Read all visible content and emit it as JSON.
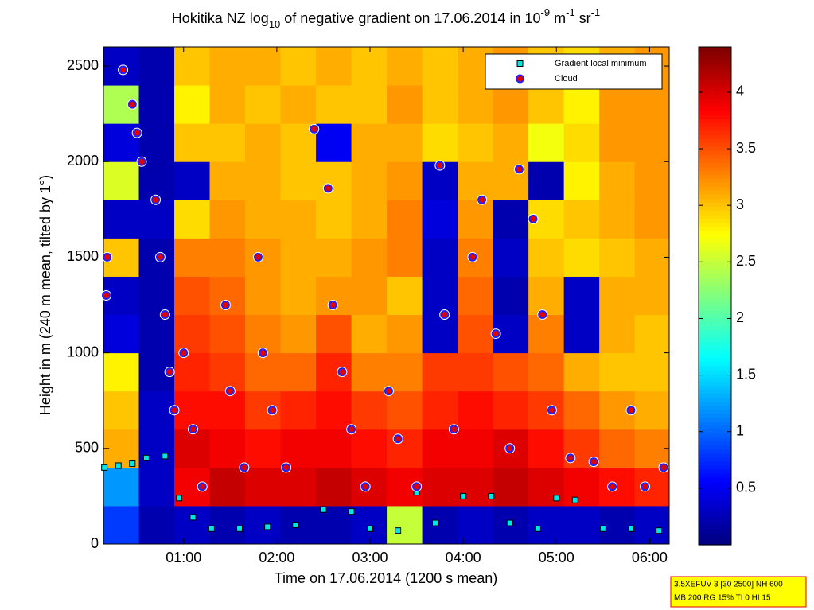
{
  "chart_data": {
    "type": "heatmap",
    "title_parts": [
      {
        "text": "Hokitika NZ log"
      },
      {
        "text": "10",
        "style": "sub"
      },
      {
        "text": " of negative gradient on 17.06.2014 in 10"
      },
      {
        "text": "-9",
        "style": "super"
      },
      {
        "text": " m"
      },
      {
        "text": "-1",
        "style": "super"
      },
      {
        "text": " sr"
      },
      {
        "text": "-1",
        "style": "super"
      }
    ],
    "x_label": "Time on 17.06.2014 (1200 s mean)",
    "y_label": "Height in m (240 m mean, tilted by 1°)",
    "xlim": [
      0.14,
      6.21
    ],
    "xticks": [
      {
        "value": 1,
        "label": "01:00"
      },
      {
        "value": 2,
        "label": "02:00"
      },
      {
        "value": 3,
        "label": "03:00"
      },
      {
        "value": 4,
        "label": "04:00"
      },
      {
        "value": 5,
        "label": "05:00"
      },
      {
        "value": 6,
        "label": "06:00"
      }
    ],
    "ylim": [
      0,
      2600
    ],
    "yticks": [
      0,
      500,
      1000,
      1500,
      2000,
      2500
    ],
    "clim": [
      0,
      4.4
    ],
    "cticks": [
      0.5,
      1,
      1.5,
      2,
      2.5,
      3,
      3.5,
      4
    ],
    "colormap": "jet",
    "xbins": [
      0.14,
      0.52,
      0.9,
      1.28,
      1.66,
      2.04,
      2.42,
      2.8,
      3.18,
      3.56,
      3.94,
      4.32,
      4.7,
      5.08,
      5.46,
      5.84,
      6.21
    ],
    "ybins": [
      0,
      200,
      400,
      600,
      800,
      1000,
      1200,
      1400,
      1600,
      1800,
      2000,
      2200,
      2400,
      2600
    ],
    "z": [
      [
        0.8,
        0.2,
        0.3,
        0.2,
        0.3,
        0.2,
        0.2,
        0.3,
        2.5,
        0.2,
        0.3,
        0.2,
        0.3,
        0.3,
        0.2,
        0.3
      ],
      [
        1.2,
        0.3,
        3.9,
        4.1,
        4.0,
        4.0,
        4.1,
        4.0,
        3.9,
        4.0,
        4.0,
        4.1,
        4.0,
        3.9,
        3.8,
        3.7
      ],
      [
        3.1,
        0.3,
        4.0,
        3.9,
        3.8,
        3.9,
        3.9,
        3.8,
        3.7,
        3.9,
        3.9,
        4.0,
        3.8,
        3.6,
        3.4,
        3.3
      ],
      [
        3.0,
        0.3,
        3.8,
        3.8,
        3.6,
        3.7,
        3.8,
        3.6,
        3.5,
        3.7,
        3.8,
        3.7,
        3.6,
        3.4,
        3.2,
        3.1
      ],
      [
        2.8,
        0.2,
        3.7,
        3.6,
        3.4,
        3.4,
        3.7,
        3.3,
        3.3,
        3.6,
        3.6,
        3.5,
        3.4,
        3.1,
        3.0,
        3.0
      ],
      [
        0.4,
        0.2,
        3.6,
        3.5,
        3.3,
        3.2,
        3.5,
        3.1,
        3.2,
        0.3,
        3.5,
        0.3,
        3.3,
        0.3,
        3.1,
        3.0
      ],
      [
        0.3,
        0.2,
        3.5,
        3.4,
        3.2,
        3.1,
        3.2,
        3.2,
        3.0,
        0.3,
        3.4,
        0.2,
        3.1,
        0.3,
        3.1,
        3.1
      ],
      [
        3.0,
        0.2,
        3.3,
        3.3,
        3.2,
        3.1,
        3.1,
        3.2,
        3.3,
        0.3,
        3.3,
        0.3,
        3.0,
        2.9,
        3.0,
        3.1
      ],
      [
        0.3,
        0.3,
        2.9,
        3.2,
        3.1,
        3.1,
        3.0,
        3.1,
        3.3,
        0.4,
        3.2,
        0.2,
        2.9,
        3.0,
        3.1,
        3.2
      ],
      [
        2.6,
        0.2,
        0.3,
        3.1,
        3.1,
        3.0,
        3.0,
        3.1,
        3.2,
        0.3,
        3.1,
        3.1,
        0.2,
        2.8,
        3.1,
        3.2
      ],
      [
        0.4,
        0.2,
        3.0,
        3.0,
        3.1,
        3.0,
        0.5,
        3.1,
        3.1,
        2.9,
        3.0,
        3.1,
        2.7,
        2.9,
        3.2,
        3.2
      ],
      [
        2.4,
        0.2,
        2.8,
        3.1,
        3.0,
        3.1,
        3.0,
        3.0,
        3.2,
        3.0,
        3.1,
        3.2,
        3.0,
        2.8,
        3.2,
        3.2
      ],
      [
        0.3,
        0.2,
        3.0,
        3.1,
        3.1,
        3.0,
        3.1,
        3.0,
        3.1,
        3.0,
        3.1,
        3.2,
        3.0,
        2.9,
        3.1,
        3.2
      ]
    ],
    "series": [
      {
        "name": "Gradient local minimum",
        "marker": "square",
        "color": "#00e5e5",
        "x": [
          0.15,
          0.3,
          0.45,
          0.6,
          0.8,
          0.95,
          1.1,
          1.3,
          1.6,
          1.9,
          2.2,
          2.5,
          2.8,
          3.0,
          3.3,
          3.5,
          3.7,
          4.0,
          4.3,
          4.5,
          4.8,
          5.0,
          5.2,
          5.5,
          5.8,
          6.1
        ],
        "values": [
          400,
          410,
          420,
          450,
          460,
          240,
          140,
          80,
          80,
          90,
          100,
          180,
          170,
          80,
          70,
          270,
          110,
          250,
          250,
          110,
          80,
          240,
          230,
          80,
          80,
          70
        ]
      },
      {
        "name": "Cloud",
        "marker": "circle",
        "color": "#e00000",
        "x": [
          0.17,
          0.18,
          0.35,
          0.45,
          0.5,
          0.55,
          0.7,
          0.75,
          0.8,
          0.85,
          0.9,
          1.0,
          1.1,
          1.2,
          1.45,
          1.5,
          1.65,
          1.8,
          1.85,
          1.95,
          2.1,
          2.4,
          2.55,
          2.6,
          2.7,
          2.8,
          2.95,
          3.2,
          3.3,
          3.5,
          3.75,
          3.8,
          3.9,
          4.1,
          4.2,
          4.35,
          4.5,
          4.6,
          4.75,
          4.85,
          4.95,
          5.15,
          5.4,
          5.6,
          5.8,
          5.95,
          6.15
        ],
        "values": [
          1300,
          1500,
          2480,
          2300,
          2150,
          2000,
          1800,
          1500,
          1200,
          900,
          700,
          1000,
          600,
          300,
          1250,
          800,
          400,
          1500,
          1000,
          700,
          400,
          2170,
          1860,
          1250,
          900,
          600,
          300,
          800,
          550,
          300,
          1980,
          1200,
          600,
          1500,
          1800,
          1100,
          500,
          1960,
          1700,
          1200,
          700,
          450,
          430,
          300,
          700,
          300,
          400
        ]
      }
    ],
    "legend": "upper right",
    "annotation_lines": [
      "3.5XEFUV 3 [30 2500] NH 600",
      "MB 200 RG 15% TI 0 HI 15"
    ]
  }
}
